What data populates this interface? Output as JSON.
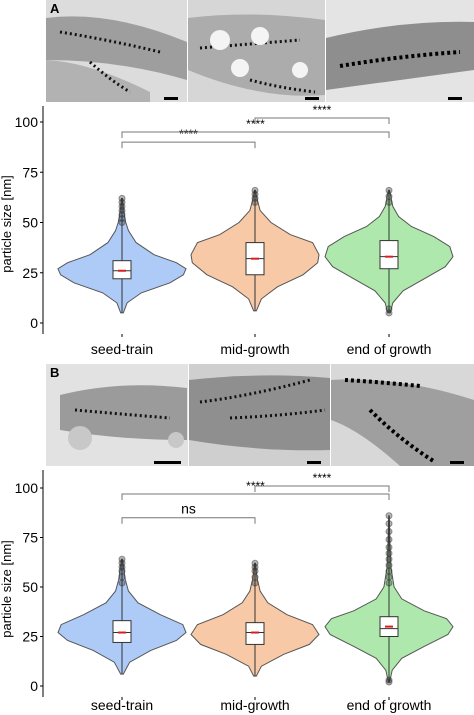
{
  "figure": {
    "panels": [
      {
        "letter": "A",
        "micrographs": [
          "",
          "",
          ""
        ],
        "chart": {
          "ylabel": "particle size [nm]",
          "yticks": [
            "0",
            "25",
            "50",
            "75",
            "100"
          ],
          "comparisons": [
            {
              "from": 0,
              "to": 1,
              "y": 90,
              "label": "****"
            },
            {
              "from": 0,
              "to": 2,
              "y": 95,
              "label": "****"
            },
            {
              "from": 1,
              "to": 2,
              "y": 102,
              "label": "****"
            }
          ]
        }
      },
      {
        "letter": "B",
        "micrographs": [
          "",
          "",
          ""
        ],
        "chart": {
          "ylabel": "particle size [nm]",
          "yticks": [
            "0",
            "25",
            "50",
            "75",
            "100"
          ],
          "comparisons": [
            {
              "from": 0,
              "to": 1,
              "y": 85,
              "label": "ns"
            },
            {
              "from": 0,
              "to": 2,
              "y": 97,
              "label": "****"
            },
            {
              "from": 1,
              "to": 2,
              "y": 101,
              "label": "****"
            }
          ]
        }
      }
    ]
  },
  "chart_data": [
    {
      "type": "violin",
      "panel": "A",
      "title": "",
      "xlabel": "",
      "ylabel": "particle size [nm]",
      "ylim": [
        -3,
        110
      ],
      "yticks": [
        0,
        25,
        50,
        75,
        100
      ],
      "grid": false,
      "legend": "none",
      "categories": [
        "seed-train",
        "mid-growth",
        "end of growth"
      ],
      "colors": [
        "#aecbf7",
        "#f8c9a7",
        "#aee8ad"
      ],
      "series": [
        {
          "category": "seed-train",
          "median": 26,
          "mean": 26,
          "q1": 22,
          "q3": 31,
          "whisker_low": 10,
          "whisker_high": 46,
          "min": 5,
          "max": 62,
          "outliers": [
            50,
            52,
            54,
            56,
            58,
            60,
            62
          ],
          "density": [
            [
              5,
              0.02
            ],
            [
              10,
              0.08
            ],
            [
              15,
              0.3
            ],
            [
              20,
              0.75
            ],
            [
              24,
              0.96
            ],
            [
              27,
              1.0
            ],
            [
              30,
              0.85
            ],
            [
              34,
              0.5
            ],
            [
              40,
              0.22
            ],
            [
              46,
              0.1
            ],
            [
              50,
              0.06
            ],
            [
              55,
              0.03
            ],
            [
              62,
              0.01
            ]
          ]
        },
        {
          "category": "mid-growth",
          "median": 32,
          "mean": 32,
          "q1": 24,
          "q3": 40,
          "whisker_low": 6,
          "whisker_high": 58,
          "min": 6,
          "max": 66,
          "outliers": [
            60,
            62,
            64,
            66
          ],
          "density": [
            [
              6,
              0.02
            ],
            [
              12,
              0.1
            ],
            [
              18,
              0.35
            ],
            [
              24,
              0.75
            ],
            [
              30,
              0.98
            ],
            [
              34,
              1.0
            ],
            [
              40,
              0.9
            ],
            [
              44,
              0.55
            ],
            [
              50,
              0.25
            ],
            [
              56,
              0.08
            ],
            [
              62,
              0.03
            ],
            [
              66,
              0.01
            ]
          ]
        },
        {
          "category": "end of growth",
          "median": 33,
          "mean": 33,
          "q1": 27,
          "q3": 41,
          "whisker_low": 10,
          "whisker_high": 58,
          "min": 5,
          "max": 66,
          "outliers": [
            5,
            7,
            60,
            63,
            66
          ],
          "density": [
            [
              5,
              0.02
            ],
            [
              10,
              0.06
            ],
            [
              16,
              0.22
            ],
            [
              22,
              0.55
            ],
            [
              28,
              0.88
            ],
            [
              33,
              1.0
            ],
            [
              38,
              0.95
            ],
            [
              43,
              0.7
            ],
            [
              48,
              0.35
            ],
            [
              53,
              0.15
            ],
            [
              58,
              0.06
            ],
            [
              66,
              0.01
            ]
          ]
        }
      ],
      "annotations": [
        "****",
        "****",
        "****"
      ]
    },
    {
      "type": "violin",
      "panel": "B",
      "title": "",
      "xlabel": "",
      "ylabel": "particle size [nm]",
      "ylim": [
        -3,
        110
      ],
      "yticks": [
        0,
        25,
        50,
        75,
        100
      ],
      "grid": false,
      "legend": "none",
      "categories": [
        "seed-train",
        "mid-growth",
        "end of growth"
      ],
      "colors": [
        "#aecbf7",
        "#f8c9a7",
        "#aee8ad"
      ],
      "series": [
        {
          "category": "seed-train",
          "median": 27,
          "mean": 27,
          "q1": 22,
          "q3": 33,
          "whisker_low": 8,
          "whisker_high": 48,
          "min": 6,
          "max": 64,
          "outliers": [
            52,
            55,
            58,
            60,
            62,
            64
          ],
          "density": [
            [
              6,
              0.02
            ],
            [
              12,
              0.12
            ],
            [
              18,
              0.45
            ],
            [
              23,
              0.85
            ],
            [
              27,
              1.0
            ],
            [
              31,
              0.95
            ],
            [
              36,
              0.6
            ],
            [
              42,
              0.25
            ],
            [
              48,
              0.1
            ],
            [
              54,
              0.05
            ],
            [
              64,
              0.01
            ]
          ]
        },
        {
          "category": "mid-growth",
          "median": 27,
          "mean": 27,
          "q1": 21,
          "q3": 32,
          "whisker_low": 6,
          "whisker_high": 48,
          "min": 5,
          "max": 62,
          "outliers": [
            52,
            55,
            58,
            60,
            62
          ],
          "density": [
            [
              5,
              0.02
            ],
            [
              10,
              0.1
            ],
            [
              16,
              0.45
            ],
            [
              21,
              0.85
            ],
            [
              26,
              1.0
            ],
            [
              31,
              0.9
            ],
            [
              36,
              0.5
            ],
            [
              42,
              0.2
            ],
            [
              48,
              0.08
            ],
            [
              55,
              0.03
            ],
            [
              62,
              0.01
            ]
          ]
        },
        {
          "category": "end of growth",
          "median": 29,
          "mean": 30,
          "q1": 25,
          "q3": 35,
          "whisker_low": 12,
          "whisker_high": 50,
          "min": 2,
          "max": 86,
          "outliers": [
            2,
            3,
            52,
            55,
            58,
            61,
            64,
            67,
            70,
            74,
            78,
            82,
            86
          ],
          "density": [
            [
              2,
              0.01
            ],
            [
              8,
              0.05
            ],
            [
              14,
              0.2
            ],
            [
              20,
              0.55
            ],
            [
              26,
              0.92
            ],
            [
              30,
              1.0
            ],
            [
              34,
              0.9
            ],
            [
              38,
              0.55
            ],
            [
              44,
              0.2
            ],
            [
              50,
              0.08
            ],
            [
              60,
              0.03
            ],
            [
              72,
              0.015
            ],
            [
              86,
              0.005
            ]
          ]
        }
      ],
      "annotations": [
        "ns",
        "****",
        "****"
      ]
    }
  ]
}
